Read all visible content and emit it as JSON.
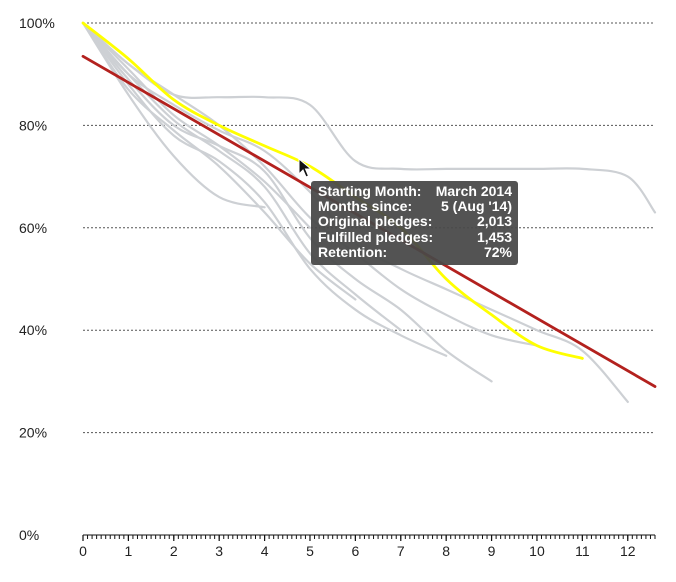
{
  "chart_data": {
    "type": "line",
    "xlim": [
      0,
      12.6
    ],
    "ylim": [
      0,
      100
    ],
    "x_ticks": [
      0,
      1,
      2,
      3,
      4,
      5,
      6,
      7,
      8,
      9,
      10,
      11,
      12
    ],
    "x_tick_labels": [
      "0",
      "1",
      "2",
      "3",
      "4",
      "5",
      "6",
      "7",
      "8",
      "9",
      "10",
      "11",
      "12"
    ],
    "y_ticks": [
      0,
      20,
      40,
      60,
      80,
      100
    ],
    "y_tick_labels": [
      "0%",
      "20%",
      "40%",
      "60%",
      "80%",
      "100%"
    ],
    "grid": "horizontal dotted",
    "colors": {
      "cohort": "#cdd0d4",
      "highlight": "#ffff00",
      "trend": "#b3211e",
      "grid": "#555555",
      "tooltip_bg": "#484848"
    },
    "series": [
      {
        "role": "cohort",
        "x": [
          0,
          1,
          2,
          3,
          4,
          5,
          6,
          7,
          8,
          9,
          10,
          11,
          12,
          12.6
        ],
        "y": [
          100,
          92,
          86,
          85.5,
          85.5,
          84,
          73,
          71.5,
          71.5,
          71.5,
          71.5,
          71.5,
          70,
          63
        ]
      },
      {
        "role": "cohort",
        "x": [
          0,
          1,
          2,
          3,
          4,
          5,
          6,
          7,
          8,
          9,
          10,
          11,
          12
        ],
        "y": [
          100,
          90,
          84,
          79,
          75,
          67,
          57,
          52,
          48,
          44,
          40,
          36,
          26
        ]
      },
      {
        "role": "cohort",
        "x": [
          0,
          1,
          2,
          3,
          4,
          5,
          6,
          7,
          8,
          9,
          10
        ],
        "y": [
          100,
          92,
          86,
          80,
          72,
          62,
          55,
          48,
          43,
          39,
          37
        ]
      },
      {
        "role": "cohort",
        "x": [
          0,
          1,
          2,
          3,
          4,
          5,
          6,
          7,
          8,
          9
        ],
        "y": [
          100,
          89,
          80,
          76,
          71,
          58,
          50,
          44,
          36,
          30
        ]
      },
      {
        "role": "cohort",
        "x": [
          0,
          1,
          2,
          3,
          4,
          5,
          6,
          7,
          8
        ],
        "y": [
          100,
          88,
          78,
          73,
          65,
          52,
          44,
          39,
          35
        ]
      },
      {
        "role": "cohort",
        "x": [
          0,
          1,
          2,
          3,
          4,
          5,
          6,
          7
        ],
        "y": [
          100,
          90,
          81,
          75,
          68,
          55,
          47,
          40
        ]
      },
      {
        "role": "cohort",
        "x": [
          0,
          1,
          2,
          3,
          4,
          5,
          6
        ],
        "y": [
          100,
          87,
          79,
          72,
          63,
          53,
          46
        ]
      },
      {
        "role": "cohort",
        "x": [
          0,
          1,
          2,
          3,
          4,
          5
        ],
        "y": [
          100,
          91,
          82,
          76,
          69,
          60
        ]
      },
      {
        "role": "cohort",
        "x": [
          0,
          1,
          2,
          3,
          4
        ],
        "y": [
          100,
          86,
          74,
          66,
          64
        ]
      },
      {
        "role": "highlight",
        "x": [
          0,
          1,
          2,
          3,
          4,
          5,
          6,
          7,
          8,
          9,
          10,
          11
        ],
        "y": [
          100,
          93,
          85,
          80,
          76,
          72,
          66,
          60,
          50,
          43,
          37,
          34.5
        ]
      },
      {
        "role": "trend",
        "x": [
          0,
          12.6
        ],
        "y": [
          93.5,
          29
        ]
      }
    ]
  },
  "tooltip": {
    "rows": [
      {
        "label": "Starting Month:",
        "value": "March 2014"
      },
      {
        "label": "Months since:",
        "value": "5 (Aug '14)"
      },
      {
        "label": "Original pledges:",
        "value": "2,013"
      },
      {
        "label": "Fulfilled pledges:",
        "value": "1,453"
      },
      {
        "label": "Retention:",
        "value": "72%"
      }
    ]
  }
}
